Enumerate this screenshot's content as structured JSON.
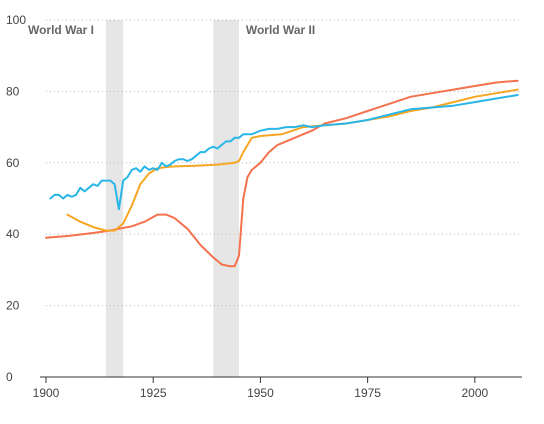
{
  "chart_data": {
    "type": "line",
    "title": "",
    "xlabel": "",
    "ylabel": "",
    "xlim": [
      1900,
      2011
    ],
    "ylim": [
      0,
      100
    ],
    "xticks": [
      1900,
      1925,
      1950,
      1975,
      2000
    ],
    "yticks": [
      0,
      20,
      40,
      60,
      80,
      100
    ],
    "grid": "horizontal dotted",
    "legend": "none",
    "bands": [
      {
        "label": "World War I",
        "start": 1914,
        "end": 1918,
        "color": "#e6e6e6"
      },
      {
        "label": "World War II",
        "start": 1939,
        "end": 1945,
        "color": "#e6e6e6"
      }
    ],
    "series": [
      {
        "color": "#29b6e8",
        "x": [
          1901,
          1902,
          1903,
          1904,
          1905,
          1906,
          1907,
          1908,
          1909,
          1910,
          1911,
          1912,
          1913,
          1914,
          1915,
          1916,
          1917,
          1918,
          1919,
          1920,
          1921,
          1922,
          1923,
          1924,
          1925,
          1926,
          1927,
          1928,
          1929,
          1930,
          1931,
          1932,
          1933,
          1934,
          1935,
          1936,
          1937,
          1938,
          1939,
          1940,
          1941,
          1942,
          1943,
          1944,
          1945,
          1946,
          1947,
          1948,
          1949,
          1950,
          1952,
          1954,
          1956,
          1958,
          1960,
          1962,
          1965,
          1970,
          1975,
          1980,
          1985,
          1990,
          1995,
          2000,
          2005,
          2010
        ],
        "y": [
          50,
          51,
          51,
          50,
          51,
          50.5,
          51,
          53,
          52,
          53,
          54,
          53.5,
          55,
          55,
          55,
          54,
          47,
          55,
          56,
          58,
          58.5,
          57.5,
          59,
          58,
          58.5,
          58,
          60,
          59,
          59.5,
          60.5,
          61,
          61,
          60.5,
          61,
          62,
          63,
          63,
          64,
          64.5,
          64,
          65,
          66,
          66,
          67,
          67,
          68,
          68,
          68,
          68.5,
          69,
          69.5,
          69.5,
          70,
          70,
          70.5,
          70,
          70.5,
          71,
          72,
          73.5,
          75,
          75.5,
          76,
          77,
          78,
          79
        ]
      },
      {
        "color": "#f5a623",
        "x": [
          1905,
          1908,
          1911,
          1914,
          1916,
          1918,
          1920,
          1922,
          1924,
          1926,
          1928,
          1930,
          1935,
          1940,
          1944,
          1945,
          1946,
          1948,
          1950,
          1955,
          1960,
          1965,
          1970,
          1975,
          1980,
          1985,
          1990,
          1995,
          2000,
          2005,
          2010
        ],
        "y": [
          45.5,
          43.5,
          42,
          41,
          41,
          43,
          48,
          54,
          57,
          58.5,
          58.8,
          59,
          59.2,
          59.5,
          60,
          60.5,
          63,
          67,
          67.5,
          68,
          70,
          70.5,
          71,
          72,
          73,
          74.5,
          75.5,
          77,
          78.5,
          79.5,
          80.5
        ]
      },
      {
        "color": "#f4724e",
        "x": [
          1900,
          1905,
          1910,
          1914,
          1917,
          1920,
          1923,
          1926,
          1928,
          1930,
          1933,
          1936,
          1939,
          1941,
          1943,
          1944,
          1945,
          1946,
          1947,
          1948,
          1950,
          1952,
          1954,
          1956,
          1958,
          1960,
          1962,
          1965,
          1970,
          1975,
          1980,
          1985,
          1990,
          1995,
          2000,
          2005,
          2010
        ],
        "y": [
          39,
          39.5,
          40.2,
          40.8,
          41.5,
          42.2,
          43.5,
          45.5,
          45.5,
          44.5,
          41.5,
          37,
          33.5,
          31.5,
          31,
          31,
          34,
          50,
          56,
          58,
          60,
          63,
          65,
          66,
          67,
          68,
          69,
          71,
          72.5,
          74.5,
          76.5,
          78.5,
          79.5,
          80.5,
          81.5,
          82.5,
          83
        ]
      }
    ]
  }
}
